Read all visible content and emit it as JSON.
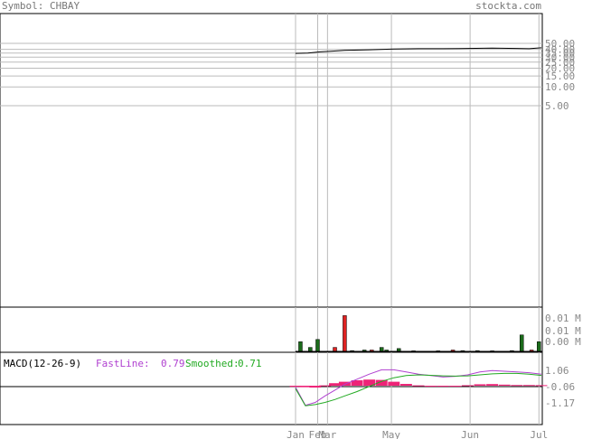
{
  "header": {
    "symbol_label": "Symbol: CHBAY",
    "site": "stockta.com"
  },
  "colors": {
    "up": "#1b6b1b",
    "down": "#dd2222",
    "grid": "#bbbbbb",
    "macd_fast": "#b040d0",
    "macd_smooth": "#22aa22",
    "histogram": "#ee2277",
    "label": "#888888"
  },
  "chart_data": [
    {
      "type": "line",
      "name": "price",
      "scale": "log",
      "y_ticks": [
        "50.00",
        "40.00",
        "35.00",
        "30.00",
        "25.00",
        "20.00",
        "15.00",
        "10.00",
        "5.00"
      ],
      "y_tick_values": [
        50,
        40,
        35,
        30,
        25,
        20,
        15,
        10,
        5
      ],
      "x_ticks": [
        "Jan",
        "Feb",
        "Mar",
        "May",
        "Jun",
        "Jul"
      ],
      "x": [
        0,
        0.05,
        0.1,
        0.15,
        0.2,
        0.3,
        0.4,
        0.5,
        0.6,
        0.7,
        0.8,
        0.9,
        0.95,
        1.0
      ],
      "y": [
        34.5,
        35.0,
        36.5,
        37.5,
        38.5,
        39.5,
        40.5,
        41.0,
        41.0,
        41.5,
        42.0,
        41.5,
        41.0,
        42.5
      ]
    },
    {
      "type": "bar",
      "name": "volume",
      "y_ticks": [
        "0.01 M",
        "0.01 M",
        "0.00 M"
      ],
      "x": [
        0.02,
        0.06,
        0.09,
        0.16,
        0.2,
        0.23,
        0.28,
        0.31,
        0.35,
        0.37,
        0.42,
        0.48,
        0.58,
        0.64,
        0.68,
        0.74,
        0.8,
        0.88,
        0.92,
        0.96,
        0.99
      ],
      "values": [
        0.0085,
        0.0035,
        0.0105,
        0.0035,
        0.0315,
        0.0007,
        0.0012,
        0.0012,
        0.0035,
        0.0012,
        0.0025,
        0.0005,
        0.0005,
        0.0012,
        0.0007,
        0.0007,
        0.0005,
        0.0007,
        0.0145,
        0.0012,
        0.0085
      ],
      "up": [
        true,
        true,
        true,
        false,
        false,
        true,
        true,
        false,
        true,
        true,
        true,
        true,
        true,
        false,
        true,
        true,
        true,
        true,
        true,
        false,
        true
      ]
    },
    {
      "type": "line",
      "name": "macd",
      "title": "MACD(12-26-9)",
      "fastline_label": "FastLine:",
      "fastline_value": "0.79",
      "smoothed_label": "Smoothed:",
      "smoothed_value": "0.71",
      "y_ticks": [
        "1.06",
        "-0.06",
        "-1.17"
      ],
      "y_tick_values": [
        1.06,
        -0.06,
        -1.17
      ],
      "x": [
        0,
        0.04,
        0.08,
        0.12,
        0.16,
        0.2,
        0.25,
        0.3,
        0.35,
        0.4,
        0.45,
        0.5,
        0.55,
        0.6,
        0.65,
        0.7,
        0.75,
        0.8,
        0.85,
        0.9,
        0.95,
        1.0
      ],
      "fast": [
        -0.1,
        -1.35,
        -1.15,
        -0.7,
        -0.3,
        0.1,
        0.45,
        0.8,
        1.1,
        1.1,
        0.95,
        0.8,
        0.7,
        0.6,
        0.65,
        0.75,
        0.95,
        1.05,
        1.0,
        0.95,
        0.9,
        0.79
      ],
      "smooth": [
        -0.2,
        -1.38,
        -1.3,
        -1.15,
        -0.95,
        -0.7,
        -0.4,
        -0.05,
        0.3,
        0.55,
        0.7,
        0.75,
        0.72,
        0.68,
        0.66,
        0.68,
        0.75,
        0.82,
        0.85,
        0.85,
        0.8,
        0.71
      ],
      "histogram": [
        -0.15,
        -0.2,
        -0.25,
        0.05,
        0.35,
        0.55,
        0.75,
        0.85,
        0.8,
        0.55,
        0.25,
        0.05,
        -0.02,
        -0.08,
        -0.02,
        0.07,
        0.2,
        0.23,
        0.15,
        0.1,
        0.1,
        0.08
      ]
    }
  ]
}
